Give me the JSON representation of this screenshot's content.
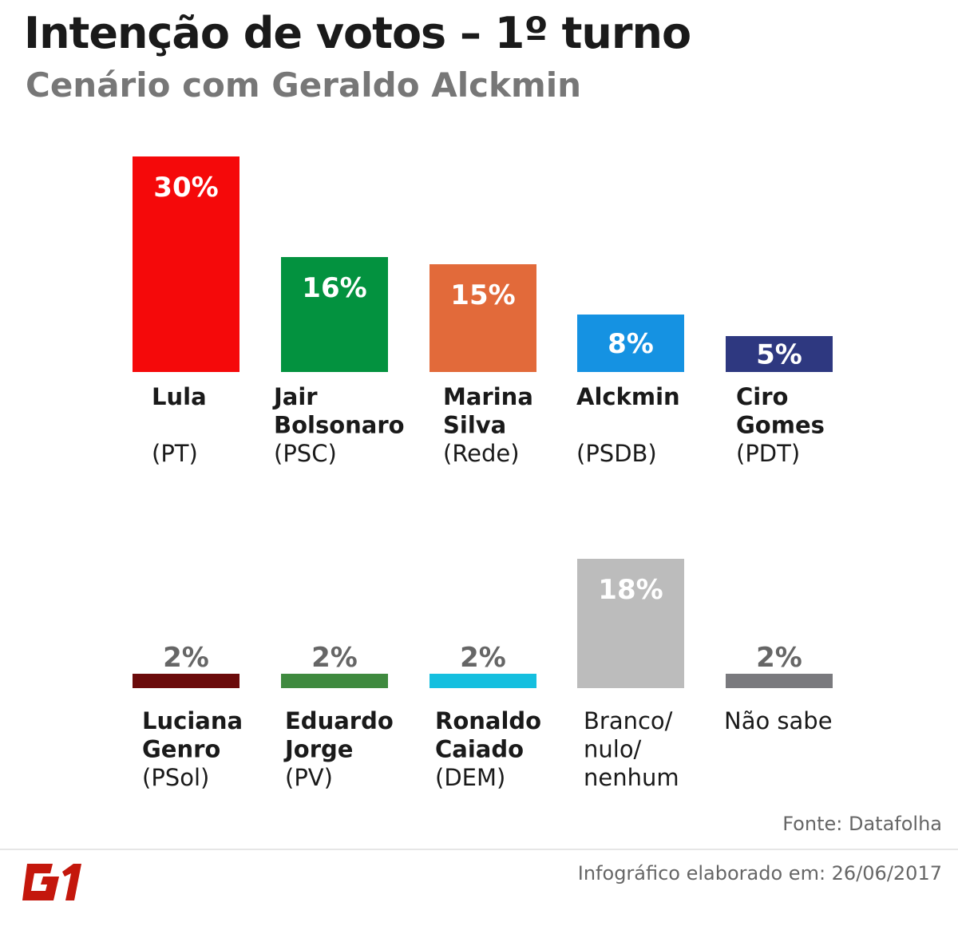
{
  "header": {
    "title": "Intenção de votos – 1º turno",
    "subtitle": "Cenário com Geraldo Alckmin"
  },
  "chart_data": {
    "type": "bar",
    "title": "Intenção de votos – 1º turno",
    "subtitle": "Cenário com Geraldo Alckmin",
    "unit": "%",
    "ylim": [
      0,
      30
    ],
    "grid": false,
    "legend": "none",
    "rows": [
      {
        "bars": [
          {
            "name_lines": [
              "Lula"
            ],
            "party": "(PT)",
            "value": 30,
            "label": "30%",
            "color": "#f5090a",
            "label_color": "#ffffff"
          },
          {
            "name_lines": [
              "Jair",
              "Bolsonaro"
            ],
            "party": "(PSC)",
            "value": 16,
            "label": "16%",
            "color": "#03923f",
            "label_color": "#ffffff"
          },
          {
            "name_lines": [
              "Marina",
              "Silva"
            ],
            "party": "(Rede)",
            "value": 15,
            "label": "15%",
            "color": "#e26a3a",
            "label_color": "#ffffff"
          },
          {
            "name_lines": [
              "Alckmin"
            ],
            "party": "(PSDB)",
            "value": 8,
            "label": "8%",
            "color": "#1592e2",
            "label_color": "#ffffff"
          },
          {
            "name_lines": [
              "Ciro",
              "Gomes"
            ],
            "party": "(PDT)",
            "value": 5,
            "label": "5%",
            "color": "#2e3880",
            "label_color": "#ffffff"
          }
        ]
      },
      {
        "bars": [
          {
            "name_lines": [
              "Luciana",
              "Genro"
            ],
            "party": "(PSol)",
            "value": 2,
            "label": "2%",
            "color": "#6b0b0b",
            "label_color": "#666666"
          },
          {
            "name_lines": [
              "Eduardo",
              "Jorge"
            ],
            "party": "(PV)",
            "value": 2,
            "label": "2%",
            "color": "#3f8a3f",
            "label_color": "#666666"
          },
          {
            "name_lines": [
              "Ronaldo",
              "Caiado"
            ],
            "party": "(DEM)",
            "value": 2,
            "label": "2%",
            "color": "#15bfdf",
            "label_color": "#666666"
          },
          {
            "plain_lines": [
              "Branco/",
              "nulo/",
              "nenhum"
            ],
            "value": 18,
            "label": "18%",
            "color": "#bcbcbc",
            "label_color": "#ffffff"
          },
          {
            "plain_lines": [
              "Não sabe"
            ],
            "value": 2,
            "label": "2%",
            "color": "#7a7a7e",
            "label_color": "#666666"
          }
        ]
      }
    ]
  },
  "source": "Fonte: Datafolha",
  "footer": {
    "logo_text": "G1",
    "caption": "Infográfico elaborado em: 26/06/2017"
  },
  "colors": {
    "logo": "#c4170c"
  }
}
